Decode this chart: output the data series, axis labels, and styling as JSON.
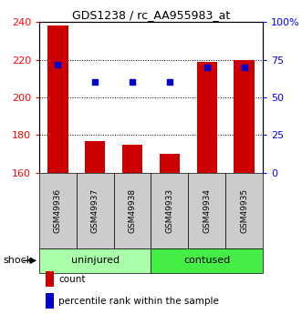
{
  "title": "GDS1238 / rc_AA955983_at",
  "samples": [
    "GSM49936",
    "GSM49937",
    "GSM49938",
    "GSM49933",
    "GSM49934",
    "GSM49935"
  ],
  "bar_values": [
    238,
    177,
    175,
    170,
    219,
    220
  ],
  "dot_values": [
    72,
    60,
    60,
    60,
    70,
    70
  ],
  "ymin": 160,
  "ymax": 240,
  "yticks_left": [
    160,
    180,
    200,
    220,
    240
  ],
  "yticks_right": [
    0,
    25,
    50,
    75,
    100
  ],
  "bar_color": "#cc0000",
  "dot_color": "#0000cc",
  "grid_lines": [
    180,
    200,
    220
  ],
  "shock_label": "shock",
  "legend_count": "count",
  "legend_pct": "percentile rank within the sample",
  "uninjured_color": "#aaffaa",
  "contused_color": "#44ee44",
  "xlabel_bg": "#cccccc"
}
